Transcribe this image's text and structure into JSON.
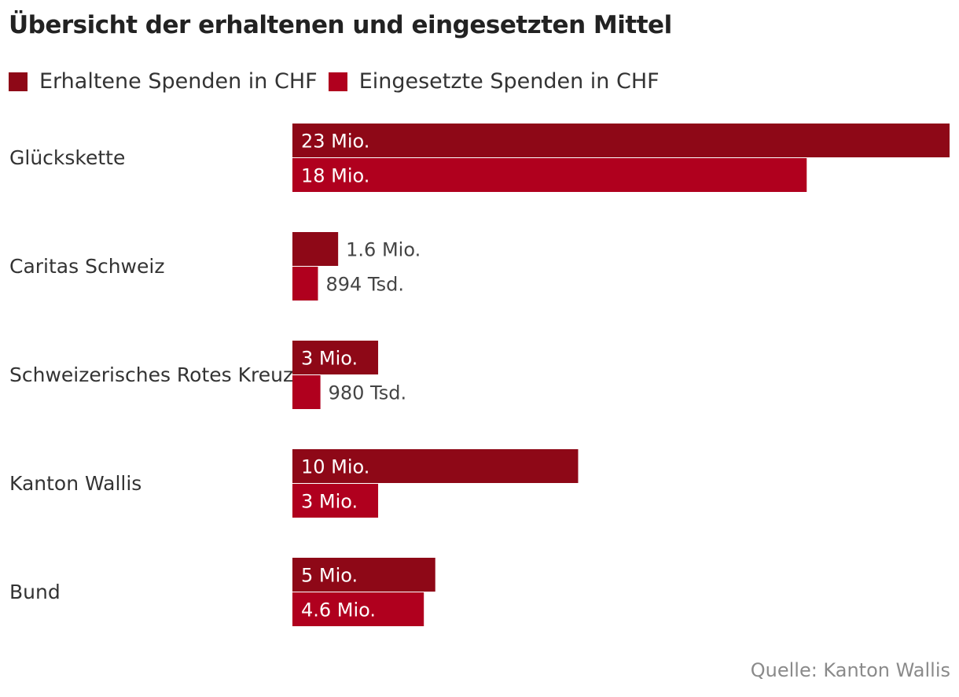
{
  "title": "Übersicht der erhaltenen und eingesetzten Mittel",
  "source": "Quelle: Kanton Wallis",
  "colors": {
    "erhalten": "#8e0817",
    "eingesetzt": "#b0001e"
  },
  "chart_data": {
    "type": "bar",
    "orientation": "horizontal",
    "title": "Übersicht der erhaltenen und eingesetzten Mittel",
    "categories": [
      "Glückskette",
      "Caritas Schweiz",
      "Schweizerisches Rotes Kreuz",
      "Kanton Wallis",
      "Bund"
    ],
    "series": [
      {
        "name": "Erhaltene Spenden in CHF",
        "color": "#8e0817",
        "values": [
          23000000,
          1600000,
          3000000,
          10000000,
          5000000
        ],
        "labels": [
          "23 Mio.",
          "1.6 Mio.",
          "3 Mio.",
          "10 Mio.",
          "5 Mio."
        ]
      },
      {
        "name": "Eingesetzte Spenden in CHF",
        "color": "#b0001e",
        "values": [
          18000000,
          894000,
          980000,
          3000000,
          4600000
        ],
        "labels": [
          "18 Mio.",
          "894 Tsd.",
          "980 Tsd.",
          "3 Mio.",
          "4.6 Mio."
        ]
      }
    ],
    "xlim": [
      0,
      23000000
    ],
    "grid": false,
    "legend": "top-left",
    "xlabel": "",
    "ylabel": ""
  }
}
